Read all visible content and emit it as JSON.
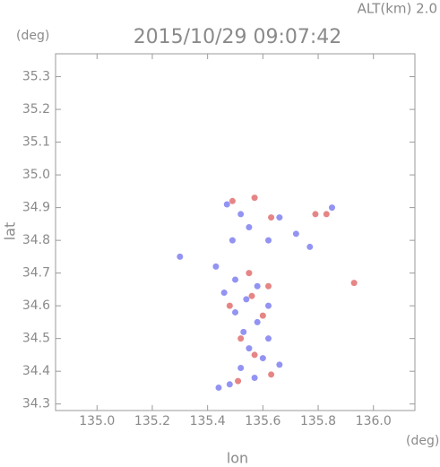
{
  "chart_data": {
    "type": "scatter",
    "title": "2015/10/29 09:07:42",
    "annotations": [
      "ALT(km) 2.0"
    ],
    "y_unit": "(deg)",
    "x_unit": "(deg)",
    "x_label": "lon",
    "y_label": "lat",
    "xlim": [
      134.85,
      136.15
    ],
    "ylim": [
      34.28,
      35.37
    ],
    "xticks": [
      {
        "value": 135,
        "label": "135.0"
      },
      135.2,
      135.4,
      135.6,
      135.8,
      {
        "value": 136,
        "label": "136.0"
      }
    ],
    "yticks": [
      34.3,
      34.4,
      34.5,
      34.6,
      34.7,
      34.8,
      34.9,
      {
        "value": 35,
        "label": "35.0"
      },
      35.1,
      35.2,
      35.3
    ],
    "series": [
      {
        "color": "#7878f0",
        "x": [
          135.47,
          135.52,
          135.55,
          135.62,
          135.66,
          135.72,
          135.77,
          135.3,
          135.43,
          135.5,
          135.58,
          135.46,
          135.54,
          135.62,
          135.5,
          135.58,
          135.53,
          135.62,
          135.55,
          135.6,
          135.52,
          135.66,
          135.57,
          135.48,
          135.44,
          135.85,
          135.49
        ],
        "y": [
          34.91,
          34.88,
          34.84,
          34.8,
          34.87,
          34.82,
          34.78,
          34.75,
          34.72,
          34.68,
          34.66,
          34.64,
          34.62,
          34.6,
          34.58,
          34.55,
          34.52,
          34.5,
          34.47,
          34.44,
          34.41,
          34.42,
          34.38,
          34.36,
          34.35,
          34.9,
          34.8
        ]
      },
      {
        "color": "#e06666",
        "x": [
          135.49,
          135.57,
          135.79,
          135.83,
          135.63,
          135.93,
          135.55,
          135.62,
          135.48,
          135.6,
          135.52,
          135.57,
          135.63,
          135.51,
          135.56
        ],
        "y": [
          34.92,
          34.93,
          34.88,
          34.88,
          34.87,
          34.67,
          34.7,
          34.66,
          34.6,
          34.57,
          34.5,
          34.45,
          34.39,
          34.37,
          34.63
        ]
      }
    ]
  }
}
